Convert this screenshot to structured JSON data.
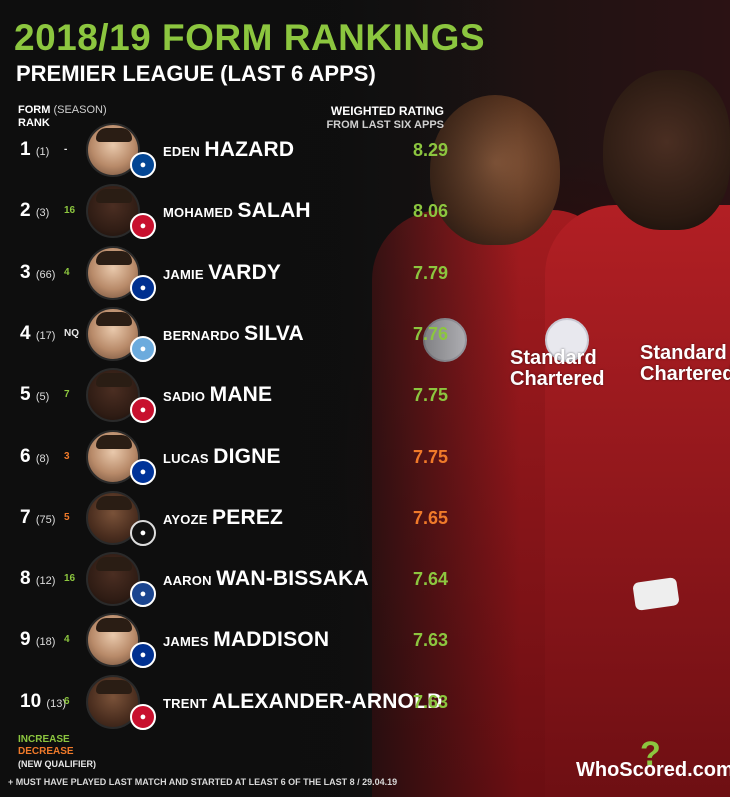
{
  "title": "2018/19 FORM RANKINGS",
  "subtitle": "PREMIER LEAGUE (LAST 6 APPS)",
  "headers": {
    "form": "FORM",
    "season": "(SEASON)",
    "rank": "RANK",
    "weighted_rating": "WEIGHTED RATING",
    "from_last": "FROM LAST SIX APPS"
  },
  "background": {
    "sponsor_line1": "Standard",
    "sponsor_line2": "Chartered"
  },
  "colors": {
    "accent_green": "#8cc63f",
    "decrease_orange": "#f07a2a",
    "background": "#111111"
  },
  "players": [
    {
      "rank": "1",
      "season": "(1)",
      "change": "-",
      "change_type": "new",
      "first": "EDEN",
      "last": "HAZARD",
      "rating": "8.29",
      "rating_color": "green",
      "club": "chelsea",
      "club_icon": "chelsea-crest-icon"
    },
    {
      "rank": "2",
      "season": "(3)",
      "change": "16",
      "change_type": "up",
      "first": "MOHAMED",
      "last": "SALAH",
      "rating": "8.06",
      "rating_color": "green",
      "club": "liverpool",
      "club_icon": "liverpool-crest-icon"
    },
    {
      "rank": "3",
      "season": "(66)",
      "change": "4",
      "change_type": "up",
      "first": "JAMIE",
      "last": "VARDY",
      "rating": "7.79",
      "rating_color": "green",
      "club": "leicester",
      "club_icon": "leicester-crest-icon"
    },
    {
      "rank": "4",
      "season": "(17)",
      "change": "NQ",
      "change_type": "new",
      "first": "BERNARDO",
      "last": "SILVA",
      "rating": "7.76",
      "rating_color": "green",
      "club": "mancity",
      "club_icon": "man-city-crest-icon"
    },
    {
      "rank": "5",
      "season": "(5)",
      "change": "7",
      "change_type": "up",
      "first": "SADIO",
      "last": "MANE",
      "rating": "7.75",
      "rating_color": "green",
      "club": "liverpool",
      "club_icon": "liverpool-crest-icon"
    },
    {
      "rank": "6",
      "season": "(8)",
      "change": "3",
      "change_type": "down",
      "first": "LUCAS",
      "last": "DIGNE",
      "rating": "7.75",
      "rating_color": "orange",
      "club": "everton",
      "club_icon": "everton-crest-icon"
    },
    {
      "rank": "7",
      "season": "(75)",
      "change": "5",
      "change_type": "down",
      "first": "AYOZE",
      "last": "PEREZ",
      "rating": "7.65",
      "rating_color": "orange",
      "club": "newcastle",
      "club_icon": "newcastle-crest-icon"
    },
    {
      "rank": "8",
      "season": "(12)",
      "change": "16",
      "change_type": "up",
      "first": "AARON",
      "last": "WAN-BISSAKA",
      "rating": "7.64",
      "rating_color": "green",
      "club": "palace",
      "club_icon": "crystal-palace-crest-icon"
    },
    {
      "rank": "9",
      "season": "(18)",
      "change": "4",
      "change_type": "up",
      "first": "JAMES",
      "last": "MADDISON",
      "rating": "7.63",
      "rating_color": "green",
      "club": "leicester",
      "club_icon": "leicester-crest-icon"
    },
    {
      "rank": "10",
      "season": "(13)",
      "change": "6",
      "change_type": "up",
      "first": "TRENT",
      "last": "ALEXANDER-ARNOLD",
      "rating": "7.63",
      "rating_color": "green",
      "club": "liverpool",
      "club_icon": "liverpool-crest-icon"
    }
  ],
  "legend": {
    "increase": "INCREASE",
    "decrease": "DECREASE",
    "new_qualifier": "(NEW QUALIFIER)"
  },
  "footnote": "+ MUST HAVE PLAYED LAST MATCH AND STARTED AT LEAST 6 OF THE LAST 8 / 29.04.19",
  "brand": {
    "name": "WhoScored.com",
    "logo_icon": "question-mark-logo-icon"
  }
}
